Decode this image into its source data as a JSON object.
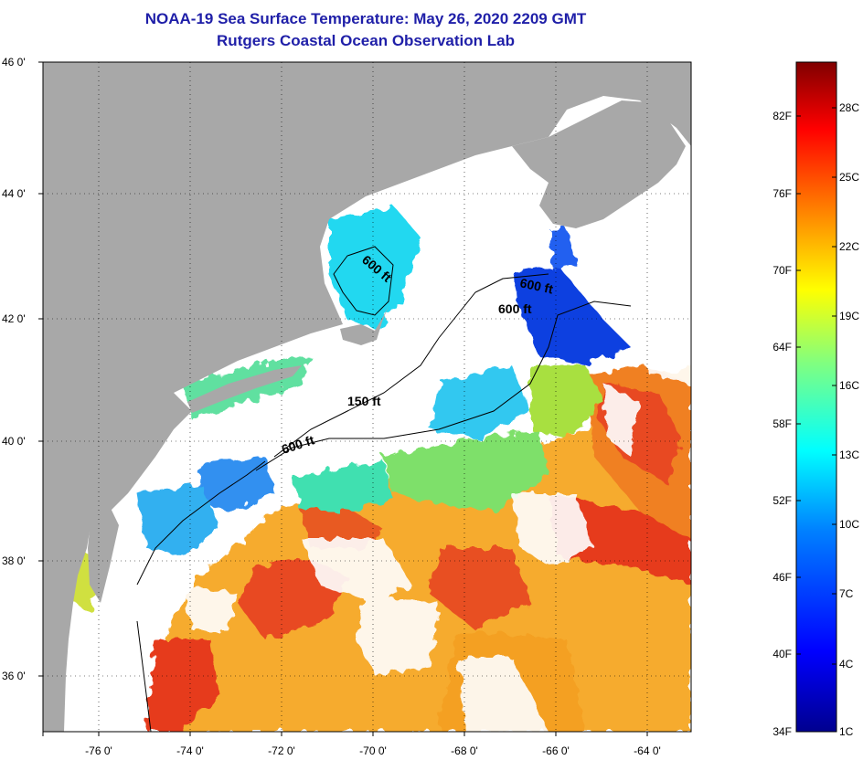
{
  "header": {
    "title": "NOAA-19 Sea Surface Temperature:  May 26, 2020 2209 GMT",
    "subtitle": "Rutgers Coastal Ocean Observation Lab"
  },
  "map": {
    "lat_labels": [
      "46 0'",
      "44 0'",
      "42 0'",
      "40 0'",
      "38 0'",
      "36 0'"
    ],
    "lon_labels": [
      "-76 0'",
      "-74 0'",
      "-72 0'",
      "-70 0'",
      "-68 0'",
      "-66 0'",
      "-64 0'"
    ],
    "contour_labels": [
      "600 ft",
      "600 ft",
      "600 ft",
      "150 ft",
      "600 ft"
    ],
    "colors": {
      "land": "#a8a8a8",
      "cloud": "#ffffff"
    }
  },
  "colorbar": {
    "f_labels": [
      "82F",
      "76F",
      "70F",
      "64F",
      "58F",
      "52F",
      "46F",
      "40F",
      "34F"
    ],
    "c_labels": [
      "28C",
      "25C",
      "22C",
      "19C",
      "16C",
      "13C",
      "10C",
      "7C",
      "4C",
      "1C"
    ],
    "gradient_stops": [
      "#00008f",
      "#0000ff",
      "#0080ff",
      "#00ffff",
      "#80ff80",
      "#ffff00",
      "#ff8000",
      "#ff0000",
      "#800000"
    ]
  }
}
